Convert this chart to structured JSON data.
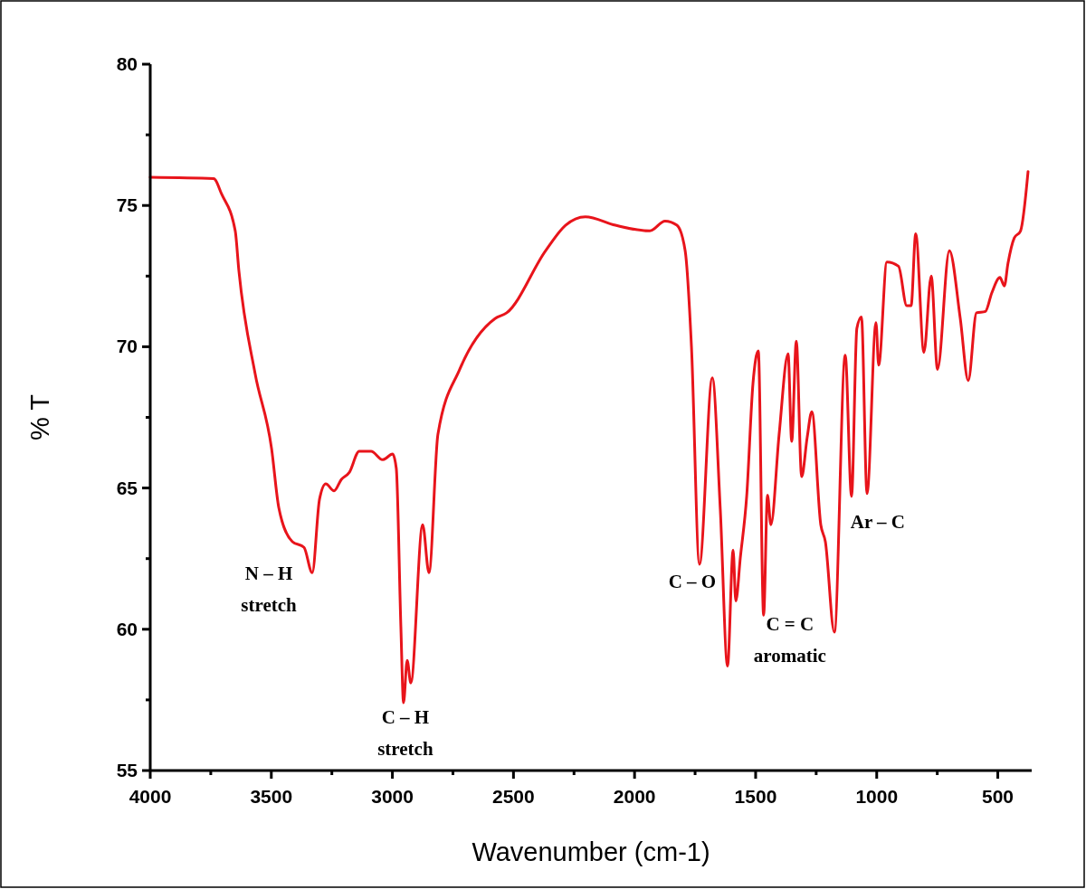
{
  "chart_data": {
    "type": "line",
    "xlabel": "Wavenumber (cm-1)",
    "ylabel": "% T",
    "xlim": [
      4000,
      360
    ],
    "ylim": [
      55,
      80
    ],
    "xticks": [
      4000,
      {
        "value": 3750,
        "label": null
      },
      3500,
      {
        "value": 3250,
        "label": null
      },
      3000,
      {
        "value": 2750,
        "label": null
      },
      2500,
      {
        "value": 2250,
        "label": null
      },
      2000,
      {
        "value": 1750,
        "label": null
      },
      1500,
      {
        "value": 1250,
        "label": null
      },
      1000,
      {
        "value": 750,
        "label": null
      },
      500
    ],
    "yticks": [
      55,
      {
        "value": 57.5,
        "label": null
      },
      60,
      {
        "value": 62.5,
        "label": null
      },
      65,
      {
        "value": 67.5,
        "label": null
      },
      70,
      {
        "value": 72.5,
        "label": null
      },
      75,
      {
        "value": 77.5,
        "label": null
      },
      80
    ],
    "grid": false,
    "marker": "none",
    "line_style": "solid",
    "series": [
      {
        "color": "#e8141b",
        "x": [
          4000,
          3738,
          3705,
          3649,
          3634,
          3567,
          3499,
          3469,
          3413,
          3365,
          3331,
          3301,
          3275,
          3241,
          3211,
          3178,
          3137,
          3088,
          3040,
          2999,
          2984,
          2965,
          2954,
          2939,
          2924,
          2875,
          2849,
          2812,
          2722,
          2576,
          2528,
          2367,
          2285,
          2203,
          2079,
          1937,
          1874,
          1825,
          1791,
          1765,
          1732,
          1679,
          1646,
          1616,
          1593,
          1582,
          1563,
          1537,
          1511,
          1489,
          1467,
          1451,
          1437,
          1403,
          1366,
          1351,
          1332,
          1310,
          1287,
          1268,
          1231,
          1212,
          1175,
          1130,
          1104,
          1082,
          1063,
          1040,
          1003,
          992,
          958,
          910,
          876,
          858,
          839,
          805,
          775,
          749,
          700,
          655,
          622,
          588,
          551,
          525,
          491,
          473,
          458,
          432,
          406,
          375
        ],
        "values": [
          76.0,
          75.95,
          75.4,
          74.1,
          72.7,
          69.05,
          66.4,
          64.3,
          63.1,
          62.9,
          62.0,
          64.6,
          65.15,
          64.9,
          65.3,
          65.55,
          66.3,
          66.3,
          66.0,
          66.2,
          65.7,
          60.1,
          57.4,
          58.9,
          58.1,
          63.7,
          62.0,
          66.9,
          69.2,
          71.0,
          71.2,
          73.4,
          74.3,
          74.6,
          74.3,
          74.1,
          74.45,
          74.3,
          73.4,
          70.0,
          62.3,
          68.9,
          64.25,
          58.7,
          62.8,
          61.0,
          62.55,
          64.7,
          68.7,
          69.85,
          60.5,
          64.75,
          63.7,
          66.9,
          69.75,
          66.65,
          70.2,
          65.4,
          66.8,
          67.7,
          63.7,
          63.1,
          59.9,
          69.7,
          64.7,
          70.65,
          71.05,
          64.8,
          70.85,
          69.35,
          73.0,
          72.85,
          71.45,
          71.45,
          74.0,
          69.8,
          72.5,
          69.2,
          73.4,
          71.0,
          68.8,
          71.2,
          71.25,
          71.9,
          72.45,
          72.15,
          72.95,
          73.85,
          74.1,
          76.2
        ]
      }
    ],
    "annotations": [
      {
        "text": "N – H\nstretch",
        "x": 3331,
        "y": 62.0
      },
      {
        "text": "C – H\nstretch",
        "x": 2954,
        "y": 57.4
      },
      {
        "text": "C – O",
        "x": 1732,
        "y": 62.3
      },
      {
        "text": "C = C\naromatic",
        "x": 1467,
        "y": 60.5
      },
      {
        "text": "Ar – C",
        "x": 1104,
        "y": 64.7
      }
    ]
  }
}
